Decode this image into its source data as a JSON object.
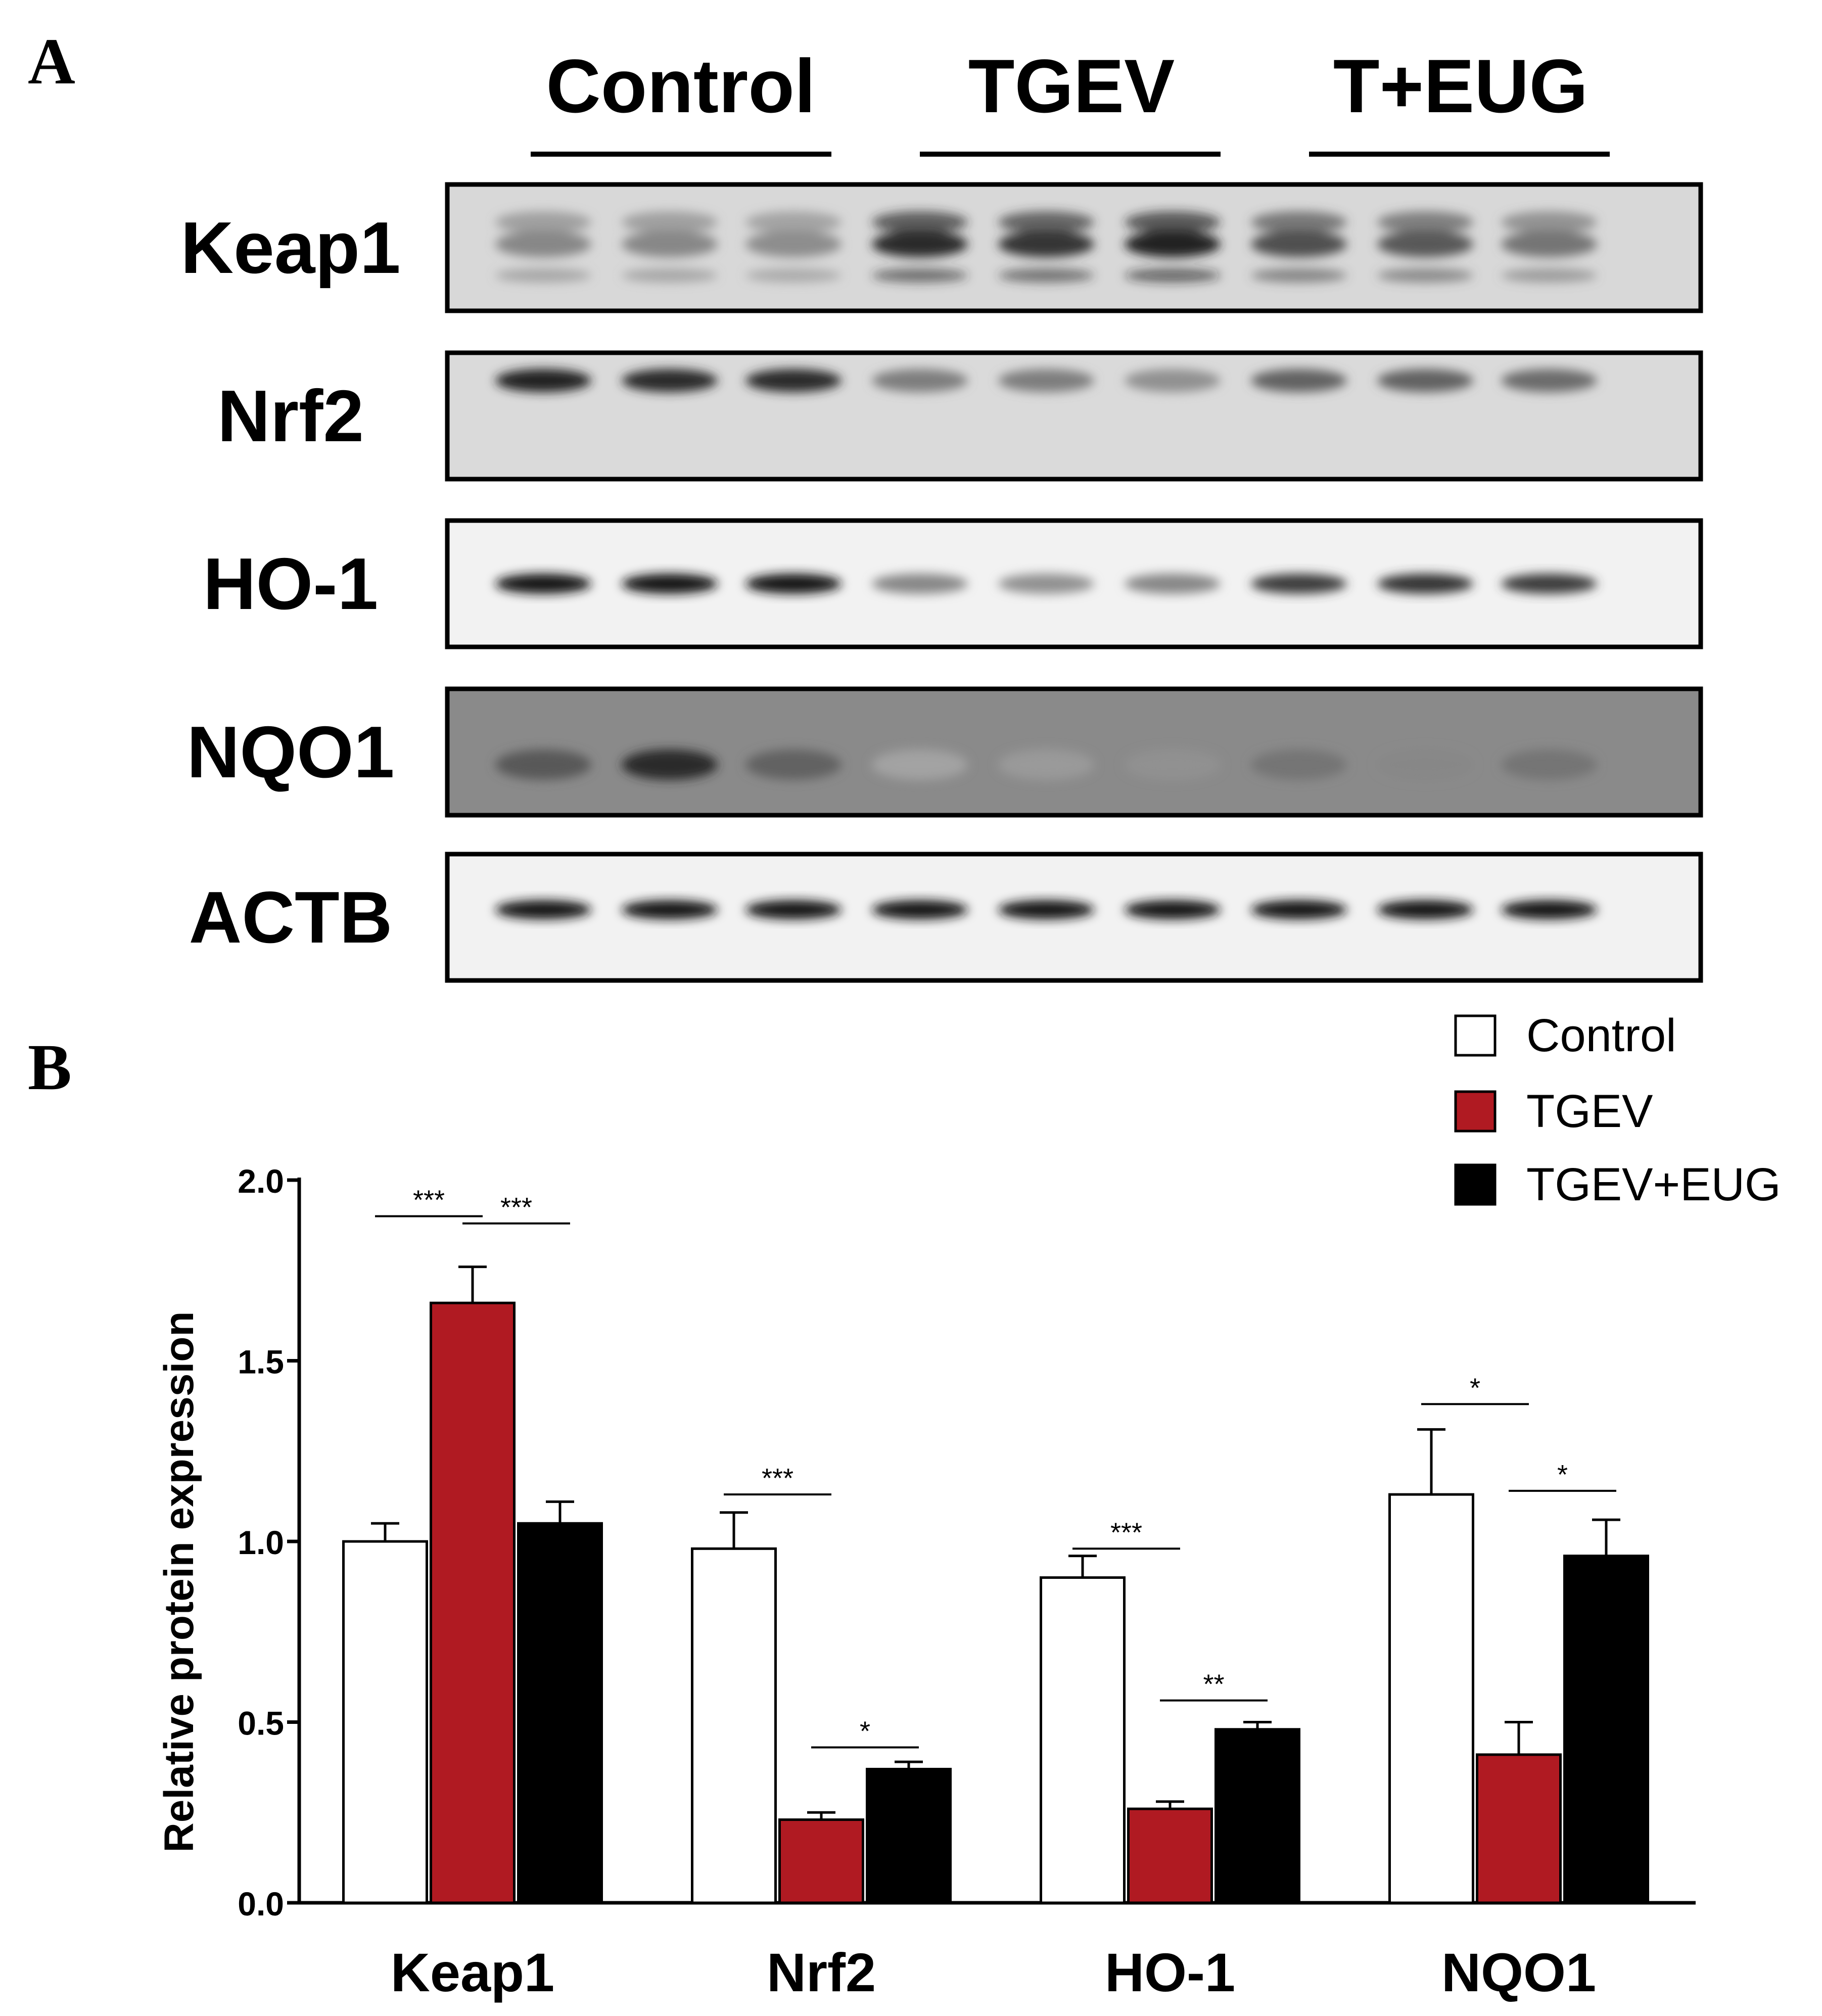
{
  "panel_a": {
    "letter": "A",
    "groups": [
      "Control",
      "TGEV",
      "T+EUG"
    ],
    "rows": [
      {
        "label": "Keap1",
        "intensities": [
          0.35,
          0.35,
          0.32,
          0.85,
          0.8,
          0.9,
          0.65,
          0.6,
          0.45
        ]
      },
      {
        "label": "Nrf2",
        "intensities": [
          0.9,
          0.85,
          0.85,
          0.4,
          0.4,
          0.3,
          0.55,
          0.55,
          0.5
        ]
      },
      {
        "label": "HO-1",
        "intensities": [
          0.95,
          0.95,
          0.95,
          0.35,
          0.3,
          0.35,
          0.75,
          0.8,
          0.75
        ]
      },
      {
        "label": "NQO1",
        "intensities": [
          0.6,
          0.85,
          0.55,
          0.2,
          0.25,
          0.3,
          0.45,
          0.35,
          0.45
        ]
      },
      {
        "label": "ACTB",
        "intensities": [
          0.95,
          0.95,
          0.95,
          0.95,
          0.95,
          0.95,
          0.95,
          0.95,
          0.95
        ]
      }
    ]
  },
  "panel_b": {
    "letter": "B"
  },
  "chart_data": {
    "type": "bar",
    "categories": [
      "Keap1",
      "Nrf2",
      "HO-1",
      "NQO1"
    ],
    "series": [
      {
        "name": "Control",
        "color": "#ffffff",
        "values": [
          1.0,
          0.98,
          0.9,
          1.13
        ],
        "errors": [
          0.05,
          0.1,
          0.06,
          0.18
        ]
      },
      {
        "name": "TGEV",
        "color": "#b01a22",
        "values": [
          1.66,
          0.23,
          0.26,
          0.41
        ],
        "errors": [
          0.1,
          0.02,
          0.02,
          0.09
        ]
      },
      {
        "name": "TGEV+EUG",
        "color": "#000000",
        "values": [
          1.05,
          0.37,
          0.48,
          0.96
        ],
        "errors": [
          0.06,
          0.02,
          0.02,
          0.1
        ]
      }
    ],
    "ylabel": "Relative protein expression",
    "xlabel": "",
    "ylim": [
      0.0,
      2.0
    ],
    "yticks": [
      "0.0",
      "0.5",
      "1.0",
      "1.5",
      "2.0"
    ],
    "legend_position": "top-right",
    "grid": false,
    "significance": [
      {
        "category": 0,
        "from_series": 0,
        "to_series": 1,
        "label": "***",
        "y": 1.9
      },
      {
        "category": 0,
        "from_series": 1,
        "to_series": 2,
        "label": "***",
        "y": 1.88
      },
      {
        "category": 1,
        "from_series": 0,
        "to_series": 1,
        "label": "***",
        "y": 1.13
      },
      {
        "category": 1,
        "from_series": 1,
        "to_series": 2,
        "label": "*",
        "y": 0.43
      },
      {
        "category": 2,
        "from_series": 0,
        "to_series": 1,
        "label": "***",
        "y": 0.98
      },
      {
        "category": 2,
        "from_series": 1,
        "to_series": 2,
        "label": "**",
        "y": 0.56
      },
      {
        "category": 3,
        "from_series": 0,
        "to_series": 1,
        "label": "*",
        "y": 1.38
      },
      {
        "category": 3,
        "from_series": 1,
        "to_series": 2,
        "label": "*",
        "y": 1.14
      }
    ]
  }
}
